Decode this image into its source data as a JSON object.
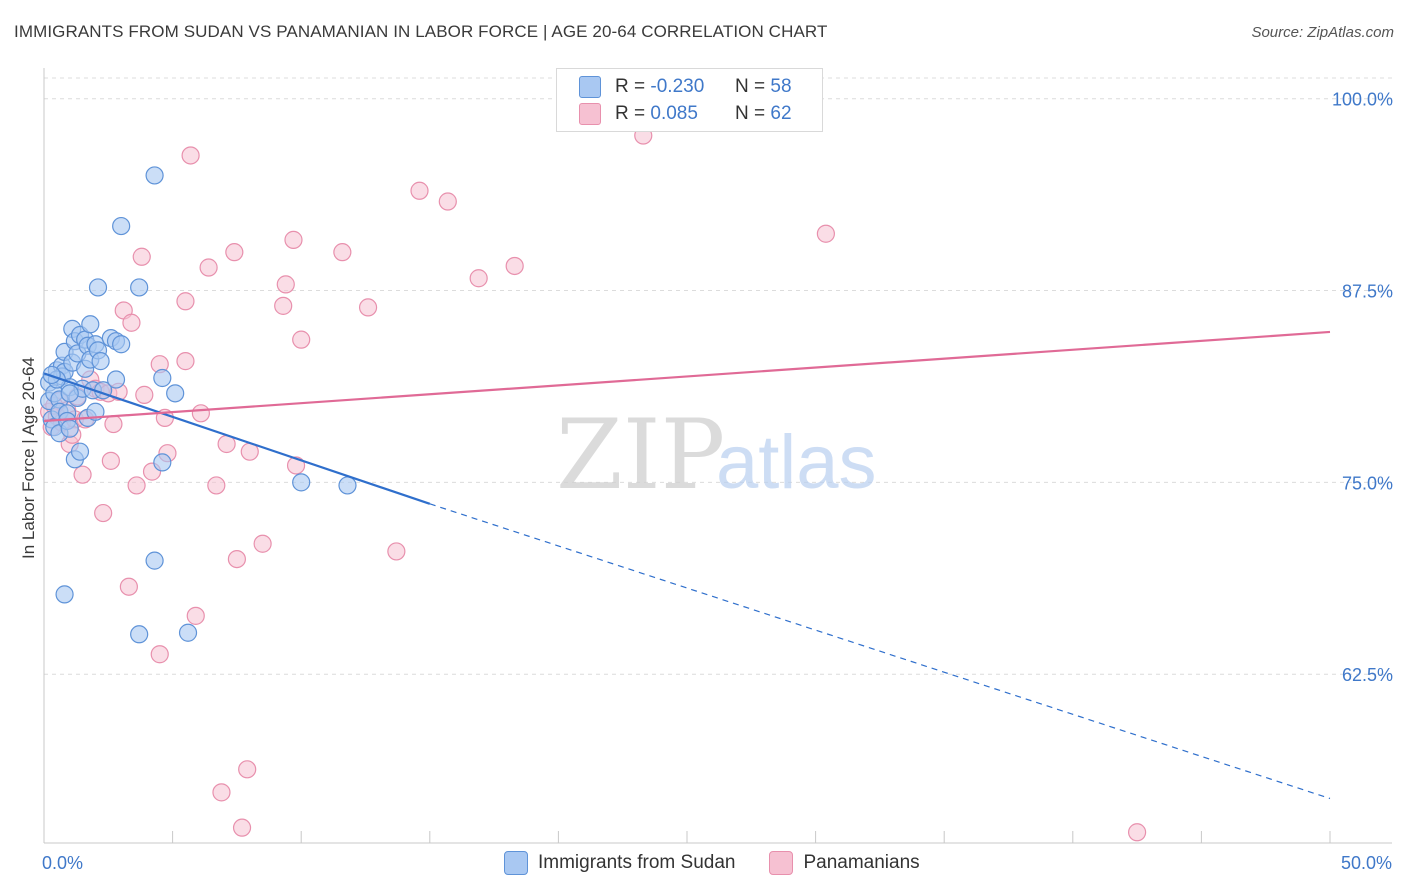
{
  "header": {
    "title": "IMMIGRANTS FROM SUDAN VS PANAMANIAN IN LABOR FORCE | AGE 20-64 CORRELATION CHART",
    "source": "Source: ZipAtlas.com"
  },
  "watermark": {
    "zip": "ZIP",
    "atlas": "atlas"
  },
  "legend": {
    "rows": [
      {
        "r_label": "R =",
        "r_value": "-0.230",
        "n_label": "N =",
        "n_value": "58"
      },
      {
        "r_label": "R =",
        "r_value": "0.085",
        "n_label": "N =",
        "n_value": "62"
      }
    ]
  },
  "bottom_legend": {
    "series1": "Immigrants from Sudan",
    "series2": "Panamanians"
  },
  "colors": {
    "sudan_fill": "#a9c8f2",
    "sudan_stroke": "#5f93d8",
    "sudan_line": "#2f6fcc",
    "pan_fill": "#f6c1d2",
    "pan_stroke": "#e890ad",
    "pan_line": "#e06a96",
    "grid": "#dcdcdc",
    "axis_text": "#3f78c9"
  },
  "chart_data": {
    "type": "scatter",
    "title": "IMMIGRANTS FROM SUDAN VS PANAMANIAN IN LABOR FORCE | AGE 20-64 CORRELATION CHART",
    "xlabel": "",
    "ylabel": "In Labor Force | Age 20-64",
    "xlim": [
      0,
      50
    ],
    "ylim": [
      51.5,
      102
    ],
    "x_tick_labels": [
      "0.0%",
      "50.0%"
    ],
    "y_ticks": [
      62.5,
      75.0,
      87.5,
      100.0
    ],
    "y_tick_labels": [
      "62.5%",
      "75.0%",
      "87.5%",
      "100.0%"
    ],
    "grid": true,
    "series": [
      {
        "name": "Immigrants from Sudan",
        "r": -0.23,
        "n": 58,
        "trend": {
          "x0": 0,
          "y0": 82.1,
          "x1": 15,
          "y1": 73.6,
          "dashed_to_x": 50,
          "dashed_to_y": 54.4
        },
        "points": [
          [
            0.2,
            80.3
          ],
          [
            0.2,
            81.5
          ],
          [
            0.3,
            79.1
          ],
          [
            0.4,
            80.8
          ],
          [
            0.4,
            78.6
          ],
          [
            0.5,
            82.3
          ],
          [
            0.6,
            80.4
          ],
          [
            0.6,
            79.6
          ],
          [
            0.7,
            82.6
          ],
          [
            0.7,
            81.9
          ],
          [
            0.6,
            78.2
          ],
          [
            0.8,
            83.5
          ],
          [
            0.8,
            82.2
          ],
          [
            0.9,
            79.5
          ],
          [
            0.9,
            79.0
          ],
          [
            1.0,
            81.2
          ],
          [
            1.0,
            78.5
          ],
          [
            1.1,
            82.8
          ],
          [
            1.1,
            85.0
          ],
          [
            1.2,
            76.5
          ],
          [
            1.2,
            84.2
          ],
          [
            1.3,
            83.4
          ],
          [
            1.3,
            80.5
          ],
          [
            1.4,
            77.0
          ],
          [
            1.4,
            84.6
          ],
          [
            1.5,
            81.1
          ],
          [
            1.6,
            84.3
          ],
          [
            1.6,
            82.4
          ],
          [
            1.7,
            83.9
          ],
          [
            1.7,
            79.2
          ],
          [
            1.8,
            85.3
          ],
          [
            1.8,
            83.0
          ],
          [
            1.9,
            81.0
          ],
          [
            2.0,
            84.0
          ],
          [
            2.0,
            79.6
          ],
          [
            2.1,
            87.7
          ],
          [
            2.1,
            83.6
          ],
          [
            2.2,
            82.9
          ],
          [
            2.3,
            81.0
          ],
          [
            2.6,
            84.4
          ],
          [
            2.8,
            84.2
          ],
          [
            3.0,
            84.0
          ],
          [
            2.8,
            81.7
          ],
          [
            3.0,
            91.7
          ],
          [
            3.7,
            87.7
          ],
          [
            4.3,
            95.0
          ],
          [
            4.6,
            81.8
          ],
          [
            5.1,
            80.8
          ],
          [
            4.6,
            76.3
          ],
          [
            4.3,
            69.9
          ],
          [
            3.7,
            65.1
          ],
          [
            5.6,
            65.2
          ],
          [
            0.8,
            67.7
          ],
          [
            10.0,
            75.0
          ],
          [
            11.8,
            74.8
          ],
          [
            0.5,
            81.7
          ],
          [
            1.0,
            80.8
          ],
          [
            0.3,
            82.0
          ]
        ]
      },
      {
        "name": "Panamanians",
        "r": 0.085,
        "n": 62,
        "trend": {
          "x0": 0,
          "y0": 79.0,
          "x1": 50,
          "y1": 84.8
        },
        "points": [
          [
            0.2,
            79.6
          ],
          [
            0.3,
            78.6
          ],
          [
            0.5,
            79.3
          ],
          [
            0.6,
            80.3
          ],
          [
            0.7,
            78.9
          ],
          [
            0.9,
            79.7
          ],
          [
            1.0,
            77.5
          ],
          [
            1.2,
            79.1
          ],
          [
            1.3,
            80.6
          ],
          [
            1.5,
            75.5
          ],
          [
            1.6,
            79.1
          ],
          [
            1.8,
            81.7
          ],
          [
            2.0,
            81.1
          ],
          [
            2.2,
            80.9
          ],
          [
            2.3,
            73.0
          ],
          [
            2.5,
            80.8
          ],
          [
            2.7,
            78.8
          ],
          [
            2.6,
            76.4
          ],
          [
            2.9,
            80.9
          ],
          [
            3.1,
            86.2
          ],
          [
            3.3,
            68.2
          ],
          [
            3.4,
            85.4
          ],
          [
            3.6,
            74.8
          ],
          [
            3.8,
            89.7
          ],
          [
            3.9,
            80.7
          ],
          [
            4.2,
            75.7
          ],
          [
            4.5,
            82.7
          ],
          [
            4.5,
            63.8
          ],
          [
            4.7,
            79.2
          ],
          [
            4.8,
            76.9
          ],
          [
            5.5,
            86.8
          ],
          [
            5.5,
            82.9
          ],
          [
            5.7,
            96.3
          ],
          [
            5.9,
            66.3
          ],
          [
            6.1,
            79.5
          ],
          [
            6.4,
            89.0
          ],
          [
            6.7,
            74.8
          ],
          [
            7.1,
            77.5
          ],
          [
            7.4,
            90.0
          ],
          [
            7.5,
            70.0
          ],
          [
            6.9,
            54.8
          ],
          [
            7.7,
            52.5
          ],
          [
            7.9,
            56.3
          ],
          [
            8.0,
            77.0
          ],
          [
            8.5,
            71.0
          ],
          [
            9.3,
            86.5
          ],
          [
            9.4,
            87.9
          ],
          [
            9.7,
            90.8
          ],
          [
            9.8,
            76.1
          ],
          [
            10.0,
            84.3
          ],
          [
            11.6,
            90.0
          ],
          [
            12.6,
            86.4
          ],
          [
            13.7,
            70.5
          ],
          [
            14.6,
            94.0
          ],
          [
            15.7,
            93.3
          ],
          [
            16.9,
            88.3
          ],
          [
            18.3,
            89.1
          ],
          [
            23.3,
            97.6
          ],
          [
            30.4,
            91.2
          ],
          [
            42.5,
            52.2
          ],
          [
            1.1,
            78.1
          ],
          [
            0.4,
            80.0
          ]
        ]
      }
    ]
  }
}
